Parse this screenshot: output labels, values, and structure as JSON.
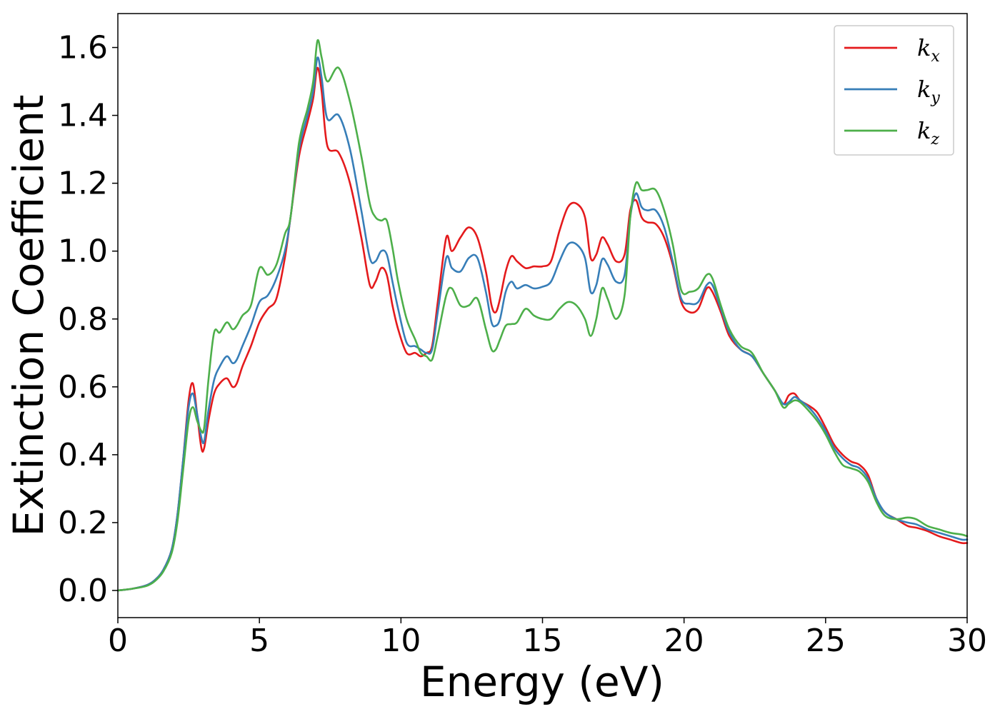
{
  "chart_data": {
    "type": "line",
    "xlabel": "Energy (eV)",
    "ylabel": "Extinction Coefficient",
    "xlim": [
      0,
      30
    ],
    "ylim": [
      -0.08,
      1.7
    ],
    "xticks": [
      0,
      5,
      10,
      15,
      20,
      25,
      30
    ],
    "yticks": [
      0.0,
      0.2,
      0.4,
      0.6,
      0.8,
      1.0,
      1.2,
      1.4,
      1.6
    ],
    "grid": false,
    "legend_position": "top-right",
    "series": [
      {
        "name": "k_x",
        "label_base": "k",
        "label_sub": "x",
        "color": "#e41a1c",
        "x": [
          0,
          0.5,
          1,
          1.3,
          1.6,
          1.9,
          2.1,
          2.3,
          2.5,
          2.65,
          2.8,
          2.95,
          3.05,
          3.2,
          3.4,
          3.6,
          3.85,
          4.05,
          4.2,
          4.4,
          4.7,
          5.0,
          5.3,
          5.6,
          5.9,
          6.1,
          6.4,
          6.7,
          6.9,
          7.05,
          7.2,
          7.4,
          7.8,
          8.2,
          8.6,
          8.9,
          9.1,
          9.3,
          9.5,
          9.7,
          9.9,
          10.2,
          10.5,
          10.7,
          10.9,
          11.1,
          11.3,
          11.6,
          11.8,
          12.1,
          12.4,
          12.7,
          13.0,
          13.2,
          13.35,
          13.5,
          13.7,
          13.9,
          14.1,
          14.4,
          14.7,
          15.0,
          15.3,
          15.6,
          15.9,
          16.2,
          16.5,
          16.7,
          16.9,
          17.1,
          17.3,
          17.6,
          17.9,
          18.1,
          18.3,
          18.5,
          18.7,
          19.0,
          19.3,
          19.6,
          19.9,
          20.2,
          20.5,
          20.8,
          21.0,
          21.3,
          21.6,
          22.0,
          22.4,
          22.8,
          23.2,
          23.5,
          23.7,
          23.9,
          24.1,
          24.4,
          24.7,
          25.0,
          25.3,
          25.6,
          25.9,
          26.2,
          26.5,
          26.8,
          27.1,
          27.5,
          27.9,
          28.2,
          28.6,
          29.0,
          29.4,
          29.8,
          30
        ],
        "y": [
          0.0,
          0.005,
          0.015,
          0.03,
          0.06,
          0.12,
          0.22,
          0.38,
          0.56,
          0.61,
          0.52,
          0.42,
          0.42,
          0.5,
          0.58,
          0.61,
          0.625,
          0.6,
          0.61,
          0.66,
          0.72,
          0.79,
          0.83,
          0.86,
          0.98,
          1.1,
          1.28,
          1.38,
          1.45,
          1.54,
          1.47,
          1.31,
          1.29,
          1.2,
          1.04,
          0.9,
          0.91,
          0.95,
          0.93,
          0.84,
          0.77,
          0.7,
          0.7,
          0.69,
          0.7,
          0.72,
          0.85,
          1.04,
          1.0,
          1.04,
          1.07,
          1.04,
          0.94,
          0.84,
          0.82,
          0.86,
          0.94,
          0.985,
          0.97,
          0.95,
          0.955,
          0.955,
          0.97,
          1.06,
          1.13,
          1.14,
          1.1,
          0.98,
          0.99,
          1.04,
          1.02,
          0.97,
          0.99,
          1.12,
          1.15,
          1.1,
          1.085,
          1.08,
          1.04,
          0.96,
          0.85,
          0.82,
          0.83,
          0.89,
          0.88,
          0.82,
          0.75,
          0.71,
          0.69,
          0.64,
          0.59,
          0.55,
          0.575,
          0.58,
          0.56,
          0.545,
          0.525,
          0.48,
          0.43,
          0.4,
          0.38,
          0.37,
          0.34,
          0.27,
          0.23,
          0.21,
          0.19,
          0.185,
          0.175,
          0.16,
          0.15,
          0.14,
          0.14
        ]
      },
      {
        "name": "k_y",
        "label_base": "k",
        "label_sub": "y",
        "color": "#377eb8",
        "x": [
          0,
          0.5,
          1,
          1.3,
          1.6,
          1.9,
          2.1,
          2.3,
          2.5,
          2.65,
          2.8,
          2.95,
          3.05,
          3.2,
          3.4,
          3.6,
          3.85,
          4.05,
          4.2,
          4.4,
          4.7,
          5.0,
          5.3,
          5.6,
          5.9,
          6.1,
          6.4,
          6.7,
          6.9,
          7.05,
          7.2,
          7.4,
          7.8,
          8.2,
          8.6,
          8.9,
          9.1,
          9.3,
          9.5,
          9.7,
          9.9,
          10.2,
          10.5,
          10.7,
          10.9,
          11.1,
          11.3,
          11.6,
          11.8,
          12.1,
          12.4,
          12.7,
          13.0,
          13.2,
          13.35,
          13.5,
          13.7,
          13.9,
          14.1,
          14.4,
          14.7,
          15.0,
          15.3,
          15.6,
          15.9,
          16.2,
          16.5,
          16.7,
          16.9,
          17.1,
          17.3,
          17.6,
          17.9,
          18.1,
          18.3,
          18.5,
          18.7,
          19.0,
          19.3,
          19.6,
          19.9,
          20.2,
          20.5,
          20.8,
          21.0,
          21.3,
          21.6,
          22.0,
          22.4,
          22.8,
          23.2,
          23.5,
          23.7,
          23.9,
          24.1,
          24.4,
          24.7,
          25.0,
          25.3,
          25.6,
          25.9,
          26.2,
          26.5,
          26.8,
          27.1,
          27.5,
          27.9,
          28.2,
          28.6,
          29.0,
          29.4,
          29.8,
          30
        ],
        "y": [
          0.0,
          0.005,
          0.015,
          0.03,
          0.06,
          0.12,
          0.22,
          0.38,
          0.54,
          0.58,
          0.52,
          0.45,
          0.44,
          0.53,
          0.62,
          0.66,
          0.69,
          0.67,
          0.68,
          0.72,
          0.78,
          0.85,
          0.87,
          0.92,
          1.0,
          1.1,
          1.3,
          1.4,
          1.47,
          1.57,
          1.51,
          1.39,
          1.4,
          1.3,
          1.12,
          0.98,
          0.97,
          1.0,
          0.99,
          0.91,
          0.83,
          0.73,
          0.72,
          0.71,
          0.7,
          0.71,
          0.82,
          0.98,
          0.95,
          0.94,
          0.98,
          0.98,
          0.88,
          0.79,
          0.78,
          0.8,
          0.88,
          0.91,
          0.89,
          0.9,
          0.89,
          0.895,
          0.91,
          0.97,
          1.02,
          1.02,
          0.98,
          0.88,
          0.9,
          0.975,
          0.96,
          0.91,
          0.93,
          1.1,
          1.17,
          1.13,
          1.12,
          1.12,
          1.07,
          0.97,
          0.86,
          0.845,
          0.85,
          0.9,
          0.9,
          0.83,
          0.76,
          0.71,
          0.69,
          0.64,
          0.59,
          0.55,
          0.555,
          0.57,
          0.56,
          0.54,
          0.51,
          0.47,
          0.42,
          0.39,
          0.37,
          0.36,
          0.33,
          0.27,
          0.23,
          0.21,
          0.2,
          0.195,
          0.18,
          0.17,
          0.16,
          0.15,
          0.15
        ]
      },
      {
        "name": "k_z",
        "label_base": "k",
        "label_sub": "z",
        "color": "#4daf4a",
        "x": [
          0,
          0.5,
          1,
          1.3,
          1.6,
          1.9,
          2.1,
          2.3,
          2.5,
          2.65,
          2.8,
          2.95,
          3.05,
          3.2,
          3.4,
          3.6,
          3.85,
          4.05,
          4.2,
          4.4,
          4.7,
          5.0,
          5.3,
          5.6,
          5.9,
          6.1,
          6.4,
          6.7,
          6.9,
          7.05,
          7.2,
          7.4,
          7.8,
          8.2,
          8.6,
          8.9,
          9.1,
          9.3,
          9.5,
          9.7,
          9.9,
          10.2,
          10.5,
          10.7,
          10.9,
          11.1,
          11.3,
          11.6,
          11.8,
          12.1,
          12.4,
          12.7,
          13.0,
          13.2,
          13.35,
          13.5,
          13.7,
          13.9,
          14.1,
          14.4,
          14.7,
          15.0,
          15.3,
          15.6,
          15.9,
          16.2,
          16.5,
          16.7,
          16.9,
          17.1,
          17.3,
          17.6,
          17.9,
          18.1,
          18.3,
          18.5,
          18.7,
          19.0,
          19.3,
          19.6,
          19.9,
          20.2,
          20.5,
          20.8,
          21.0,
          21.3,
          21.6,
          22.0,
          22.4,
          22.8,
          23.2,
          23.5,
          23.7,
          23.9,
          24.1,
          24.4,
          24.7,
          25.0,
          25.3,
          25.6,
          25.9,
          26.2,
          26.5,
          26.8,
          27.1,
          27.5,
          27.9,
          28.2,
          28.6,
          29.0,
          29.4,
          29.8,
          30
        ],
        "y": [
          0.0,
          0.005,
          0.013,
          0.027,
          0.055,
          0.11,
          0.2,
          0.35,
          0.5,
          0.54,
          0.5,
          0.47,
          0.48,
          0.62,
          0.76,
          0.76,
          0.79,
          0.77,
          0.78,
          0.81,
          0.84,
          0.95,
          0.93,
          0.96,
          1.05,
          1.1,
          1.32,
          1.42,
          1.5,
          1.62,
          1.57,
          1.5,
          1.54,
          1.44,
          1.28,
          1.14,
          1.1,
          1.09,
          1.09,
          1.01,
          0.91,
          0.8,
          0.74,
          0.7,
          0.69,
          0.68,
          0.75,
          0.87,
          0.89,
          0.84,
          0.84,
          0.86,
          0.77,
          0.71,
          0.71,
          0.74,
          0.78,
          0.785,
          0.79,
          0.83,
          0.81,
          0.8,
          0.8,
          0.83,
          0.85,
          0.84,
          0.8,
          0.75,
          0.8,
          0.89,
          0.86,
          0.8,
          0.87,
          1.1,
          1.2,
          1.18,
          1.18,
          1.18,
          1.12,
          1.02,
          0.885,
          0.88,
          0.89,
          0.93,
          0.92,
          0.84,
          0.77,
          0.72,
          0.7,
          0.64,
          0.59,
          0.54,
          0.55,
          0.56,
          0.555,
          0.53,
          0.5,
          0.46,
          0.41,
          0.37,
          0.36,
          0.35,
          0.32,
          0.26,
          0.22,
          0.21,
          0.215,
          0.21,
          0.19,
          0.18,
          0.17,
          0.165,
          0.16
        ]
      }
    ]
  }
}
